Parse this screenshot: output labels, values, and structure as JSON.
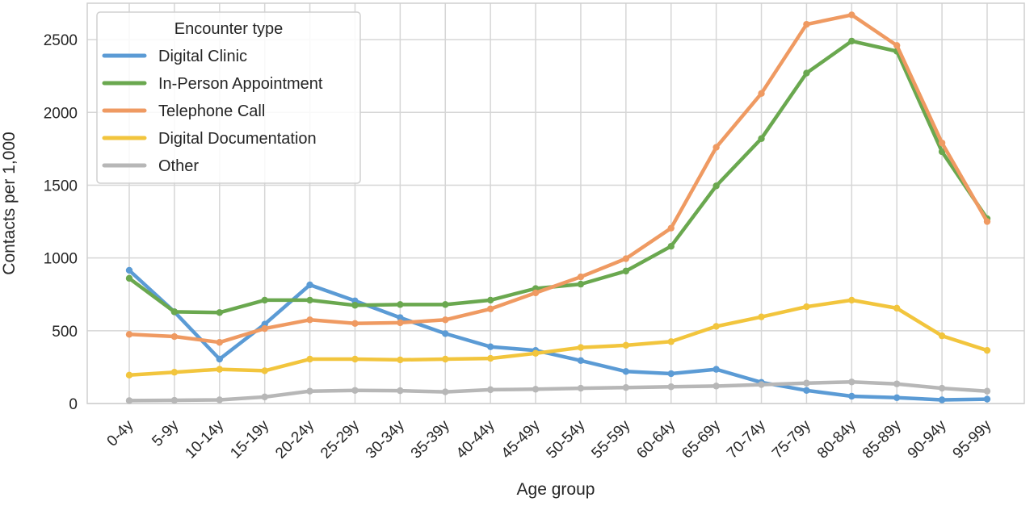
{
  "chart_data": {
    "type": "line",
    "xlabel": "Age group",
    "ylabel": "Contacts per 1,000",
    "ylim": [
      0,
      2750
    ],
    "yticks": [
      0,
      500,
      1000,
      1500,
      2000,
      2500
    ],
    "grid": true,
    "legend": {
      "title": "Encounter type",
      "placement": "top-left"
    },
    "categories": [
      "0-4y",
      "5-9y",
      "10-14y",
      "15-19y",
      "20-24y",
      "25-29y",
      "30-34y",
      "35-39y",
      "40-44y",
      "45-49y",
      "50-54y",
      "55-59y",
      "60-64y",
      "65-69y",
      "70-74y",
      "75-79y",
      "80-84y",
      "85-89y",
      "90-94y",
      "95-99y"
    ],
    "series": [
      {
        "name": "Digital Clinic",
        "color": "#5b9bd5",
        "values": [
          915,
          630,
          305,
          545,
          815,
          705,
          590,
          480,
          390,
          365,
          295,
          220,
          205,
          235,
          145,
          90,
          50,
          40,
          25,
          30
        ]
      },
      {
        "name": "In-Person Appointment",
        "color": "#6aa84f",
        "values": [
          860,
          630,
          625,
          710,
          710,
          675,
          680,
          680,
          710,
          790,
          820,
          910,
          1080,
          1495,
          1820,
          2270,
          2490,
          2420,
          1730,
          1270
        ]
      },
      {
        "name": "Telephone Call",
        "color": "#ef9a62",
        "values": [
          475,
          460,
          420,
          515,
          575,
          550,
          555,
          575,
          650,
          760,
          870,
          995,
          1205,
          1760,
          2130,
          2605,
          2670,
          2460,
          1790,
          1250
        ]
      },
      {
        "name": "Digital Documentation",
        "color": "#f2c53d",
        "values": [
          195,
          215,
          235,
          225,
          305,
          305,
          300,
          305,
          310,
          345,
          385,
          400,
          425,
          530,
          595,
          665,
          710,
          655,
          465,
          365
        ]
      },
      {
        "name": "Other",
        "color": "#b7b7b7",
        "values": [
          20,
          22,
          25,
          45,
          85,
          90,
          88,
          80,
          95,
          98,
          105,
          110,
          115,
          120,
          130,
          140,
          148,
          135,
          105,
          85
        ]
      }
    ]
  }
}
